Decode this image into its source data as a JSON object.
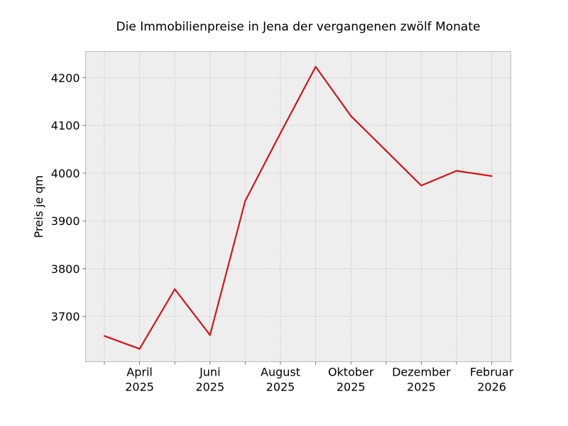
{
  "chart_data": {
    "type": "line",
    "title": "Die Immobilienpreise in Jena der vergangenen zwölf Monate",
    "xlabel": "",
    "ylabel": "Preis je qm",
    "x": [
      "2025-03",
      "2025-04",
      "2025-05",
      "2025-06",
      "2025-07",
      "2025-08",
      "2025-09",
      "2025-10",
      "2025-11",
      "2025-12",
      "2026-01",
      "2026-02"
    ],
    "series": [
      {
        "values": [
          3659,
          3632,
          3757,
          3661,
          3942,
          4084,
          4223,
          4120,
          4047,
          3974,
          4005,
          3994
        ],
        "color": "#d6141e"
      }
    ],
    "ylim": [
      3605,
      4255
    ],
    "y_ticks": [
      "3700",
      "3800",
      "3900",
      "4000",
      "4100",
      "4200"
    ],
    "x_tick_labels": [
      {
        "month": "April",
        "year": "2025"
      },
      {
        "month": "Juni",
        "year": "2025"
      },
      {
        "month": "August",
        "year": "2025"
      },
      {
        "month": "Oktober",
        "year": "2025"
      },
      {
        "month": "Dezember",
        "year": "2025"
      },
      {
        "month": "Februar",
        "year": "2026"
      }
    ],
    "grid": true,
    "background": "#eeeeee"
  }
}
